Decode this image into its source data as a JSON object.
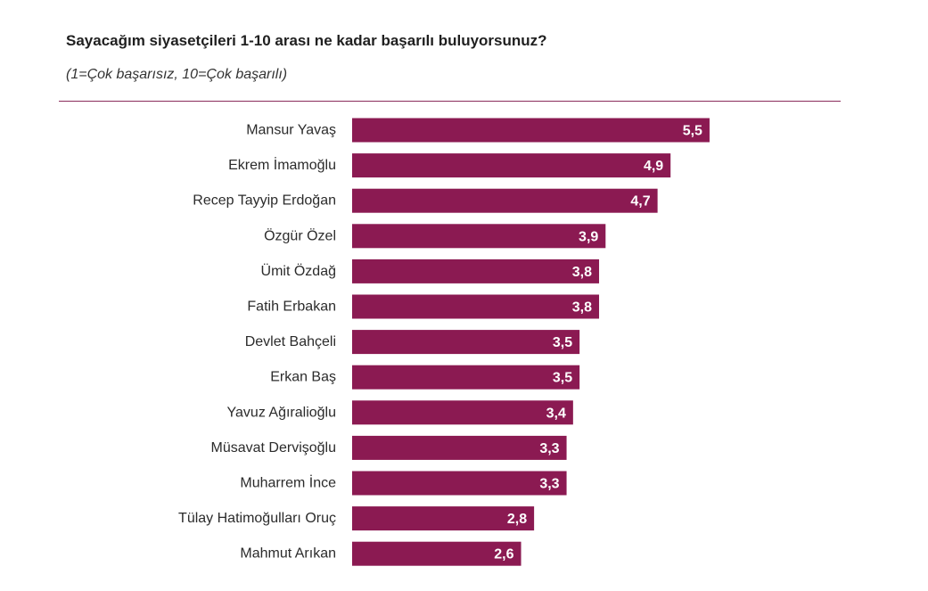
{
  "chart_data": {
    "type": "bar",
    "orientation": "horizontal",
    "title": "Sayacağım siyasetçileri 1-10 arası ne kadar başarılı buluyorsunuz?",
    "subtitle": "(1=Çok başarısız, 10=Çok başarılı)",
    "categories": [
      "Mansur Yavaş",
      "Ekrem İmamoğlu",
      "Recep Tayyip Erdoğan",
      "Özgür Özel",
      "Ümit Özdağ",
      "Fatih Erbakan",
      "Devlet Bahçeli",
      "Erkan Baş",
      "Yavuz Ağıralioğlu",
      "Müsavat Dervişoğlu",
      "Muharrem İnce",
      "Tülay Hatimoğulları Oruç",
      "Mahmut Arıkan"
    ],
    "values": [
      5.5,
      4.9,
      4.7,
      3.9,
      3.8,
      3.8,
      3.5,
      3.5,
      3.4,
      3.3,
      3.3,
      2.8,
      2.6
    ],
    "value_labels": [
      "5,5",
      "4,9",
      "4,7",
      "3,9",
      "3,8",
      "3,8",
      "3,5",
      "3,5",
      "3,4",
      "3,3",
      "3,3",
      "2,8",
      "2,6"
    ],
    "xlim": [
      0,
      10
    ],
    "grid": false,
    "bar_color": "#8b1a52",
    "label_color": "#ffffff"
  }
}
